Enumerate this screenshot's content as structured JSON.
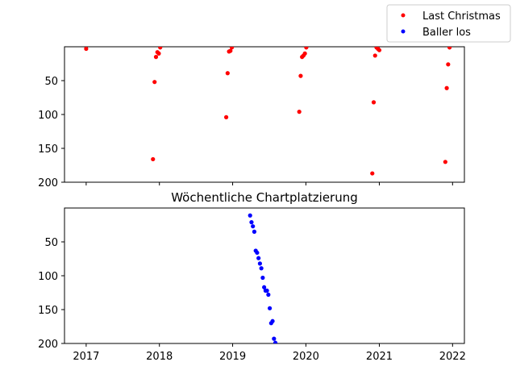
{
  "chart_data": [
    {
      "type": "scatter",
      "title": "",
      "xlabel": "",
      "ylabel": "",
      "xlim": [
        "2016-09-15",
        "2022-03-01"
      ],
      "ylim": [
        0,
        200
      ],
      "y_inverted": true,
      "y_ticks": [
        50,
        100,
        150,
        200
      ],
      "x_ticks": [
        "2017",
        "2018",
        "2019",
        "2020",
        "2021",
        "2022"
      ],
      "x_tick_labels_shown": false,
      "grid": false,
      "legend_position": "upper-right-outside",
      "series": [
        {
          "name": "Last Christmas",
          "color": "#ff0000",
          "points": [
            {
              "x": "2017-01-01",
              "y": 3
            },
            {
              "x": "2017-12-08",
              "y": 52
            },
            {
              "x": "2017-12-15",
              "y": 15
            },
            {
              "x": "2017-12-22",
              "y": 8
            },
            {
              "x": "2017-12-29",
              "y": 10
            },
            {
              "x": "2018-01-05",
              "y": 1
            },
            {
              "x": "2017-11-30",
              "y": 166
            },
            {
              "x": "2018-11-30",
              "y": 104
            },
            {
              "x": "2018-12-07",
              "y": 39
            },
            {
              "x": "2018-12-14",
              "y": 7
            },
            {
              "x": "2018-12-21",
              "y": 6
            },
            {
              "x": "2018-12-28",
              "y": 1
            },
            {
              "x": "2019-11-29",
              "y": 96
            },
            {
              "x": "2019-12-06",
              "y": 43
            },
            {
              "x": "2019-12-13",
              "y": 15
            },
            {
              "x": "2019-12-20",
              "y": 13
            },
            {
              "x": "2019-12-27",
              "y": 10
            },
            {
              "x": "2020-01-03",
              "y": 1
            },
            {
              "x": "2020-11-27",
              "y": 187
            },
            {
              "x": "2020-12-04",
              "y": 82
            },
            {
              "x": "2020-12-11",
              "y": 13
            },
            {
              "x": "2020-12-18",
              "y": 1
            },
            {
              "x": "2020-12-25",
              "y": 3
            },
            {
              "x": "2021-01-01",
              "y": 5
            },
            {
              "x": "2021-11-26",
              "y": 170
            },
            {
              "x": "2021-12-03",
              "y": 61
            },
            {
              "x": "2021-12-10",
              "y": 26
            },
            {
              "x": "2021-12-17",
              "y": 1
            }
          ]
        }
      ]
    },
    {
      "type": "scatter",
      "title": "Wöchentliche Chartplatzierung",
      "xlabel": "",
      "ylabel": "",
      "xlim": [
        "2016-09-15",
        "2022-03-01"
      ],
      "ylim": [
        0,
        200
      ],
      "y_inverted": true,
      "y_ticks": [
        50,
        100,
        150,
        200
      ],
      "x_ticks": [
        "2017",
        "2018",
        "2019",
        "2020",
        "2021",
        "2022"
      ],
      "x_tick_labels_shown": true,
      "grid": false,
      "series": [
        {
          "name": "Baller los",
          "color": "#0000ff",
          "points": [
            {
              "x": "2019-03-29",
              "y": 11
            },
            {
              "x": "2019-04-05",
              "y": 21
            },
            {
              "x": "2019-04-12",
              "y": 27
            },
            {
              "x": "2019-04-19",
              "y": 35
            },
            {
              "x": "2019-04-26",
              "y": 63
            },
            {
              "x": "2019-05-03",
              "y": 66
            },
            {
              "x": "2019-05-10",
              "y": 74
            },
            {
              "x": "2019-05-17",
              "y": 82
            },
            {
              "x": "2019-05-24",
              "y": 89
            },
            {
              "x": "2019-05-31",
              "y": 103
            },
            {
              "x": "2019-06-07",
              "y": 117
            },
            {
              "x": "2019-06-14",
              "y": 122
            },
            {
              "x": "2019-06-21",
              "y": 122
            },
            {
              "x": "2019-06-28",
              "y": 128
            },
            {
              "x": "2019-07-05",
              "y": 148
            },
            {
              "x": "2019-07-12",
              "y": 170
            },
            {
              "x": "2019-07-19",
              "y": 167
            },
            {
              "x": "2019-07-26",
              "y": 193
            },
            {
              "x": "2019-08-02",
              "y": 199
            }
          ]
        }
      ]
    }
  ],
  "legend": {
    "items": [
      {
        "label": "Last Christmas",
        "color": "#ff0000"
      },
      {
        "label": "Baller los",
        "color": "#0000ff"
      }
    ]
  }
}
